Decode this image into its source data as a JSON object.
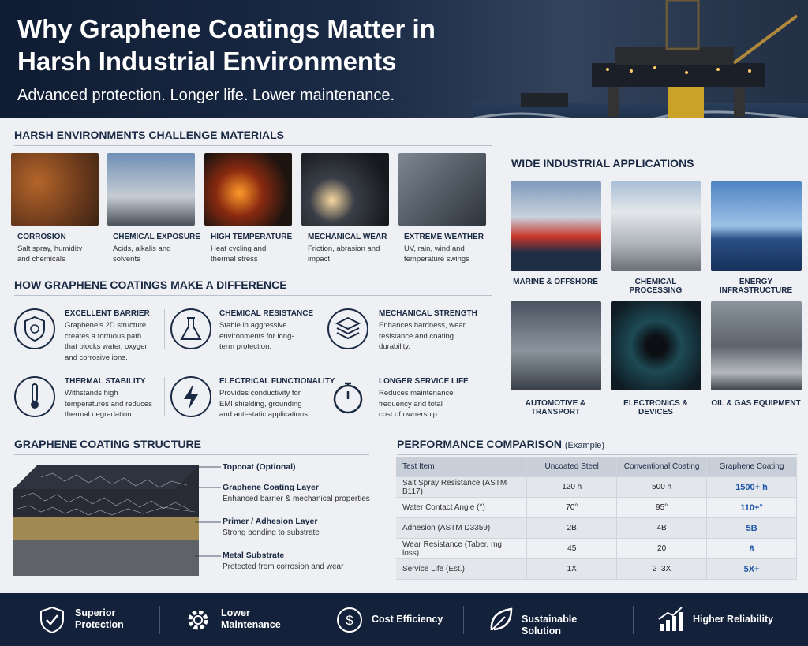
{
  "header": {
    "title": "Why Graphene Coatings Matter in Harsh Industrial Environments",
    "subtitle": "Advanced protection. Longer life. Lower maintenance."
  },
  "challenges": {
    "heading": "HARSH ENVIRONMENTS CHALLENGE MATERIALS",
    "items": [
      {
        "title": "CORROSION",
        "description": "Salt spray, humidity and chemicals"
      },
      {
        "title": "CHEMICAL EXPOSURE",
        "description": "Acids, alkalis and solvents"
      },
      {
        "title": "HIGH TEMPERATURE",
        "description": "Heat cycling and thermal stress"
      },
      {
        "title": "MECHANICAL WEAR",
        "description": "Friction, abrasion and impact"
      },
      {
        "title": "EXTREME WEATHER",
        "description": "UV, rain, wind and temperature swings"
      }
    ]
  },
  "difference": {
    "heading": "HOW GRAPHENE COATINGS MAKE A DIFFERENCE",
    "items": [
      {
        "title": "EXCELLENT BARRIER",
        "description": "Graphene's 2D structure creates a tortuous path that blocks water, oxygen and corrosive ions."
      },
      {
        "title": "CHEMICAL RESISTANCE",
        "description": "Stable in aggressive environments for long-term protection."
      },
      {
        "title": "MECHANICAL STRENGTH",
        "description": "Enhances hardness, wear resistance and coating durability."
      },
      {
        "title": "THERMAL STABILITY",
        "description": "Withstands high temperatures and reduces thermal degradation."
      },
      {
        "title": "ELECTRICAL FUNCTIONALITY",
        "description": "Provides conductivity for EMI shielding, grounding and anti-static applications."
      },
      {
        "title": "LONGER SERVICE LIFE",
        "description": "Reduces maintenance frequency and total cost of ownership."
      }
    ]
  },
  "applications": {
    "heading": "WIDE INDUSTRIAL APPLICATIONS",
    "items": [
      "MARINE & OFFSHORE",
      "CHEMICAL PROCESSING",
      "ENERGY INFRASTRUCTURE",
      "AUTOMOTIVE & TRANSPORT",
      "ELECTRONICS & DEVICES",
      "OIL & GAS EQUIPMENT"
    ]
  },
  "structure": {
    "heading": "GRAPHENE COATING STRUCTURE",
    "layers": [
      {
        "name": "Topcoat (Optional)"
      },
      {
        "name": "Graphene Coating Layer",
        "description": "Enhanced barrier & mechanical properties"
      },
      {
        "name": "Primer / Adhesion Layer",
        "description": "Strong bonding to substrate"
      },
      {
        "name": "Metal Substrate",
        "description": "Protected from corrosion and wear"
      }
    ]
  },
  "comparison": {
    "heading": "PERFORMANCE COMPARISON",
    "note": "(Example)",
    "columns": [
      "Test Item",
      "Uncoated Steel",
      "Conventional Coating",
      "Graphene Coating"
    ],
    "rows": [
      [
        "Salt Spray Resistance (ASTM B117)",
        "120 h",
        "500 h",
        "1500+ h"
      ],
      [
        "Water Contact Angle (°)",
        "70°",
        "95°",
        "110+°"
      ],
      [
        "Adhesion (ASTM D3359)",
        "2B",
        "4B",
        "5B"
      ],
      [
        "Wear Resistance (Taber, mg loss)",
        "45",
        "20",
        "8"
      ],
      [
        "Service Life (Est.)",
        "1X",
        "2–3X",
        "5X+"
      ]
    ]
  },
  "footer": {
    "items": [
      "Superior Protection",
      "Lower Maintenance",
      "Cost Efficiency",
      "Sustainable Solution",
      "Higher Reliability"
    ]
  }
}
